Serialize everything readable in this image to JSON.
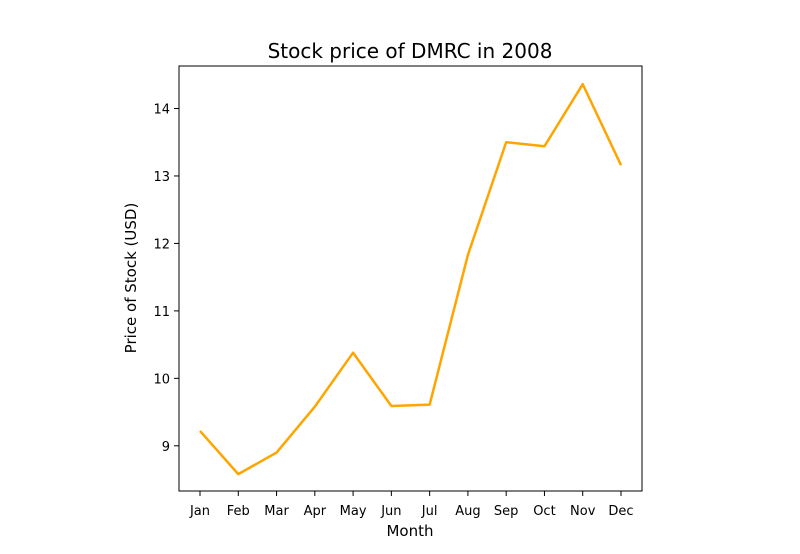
{
  "chart_data": {
    "type": "line",
    "title": "Stock price of DMRC in 2008",
    "xlabel": "Month",
    "ylabel": "Price of Stock (USD)",
    "categories": [
      "Jan",
      "Feb",
      "Mar",
      "Apr",
      "May",
      "Jun",
      "Jul",
      "Aug",
      "Sep",
      "Oct",
      "Nov",
      "Dec"
    ],
    "series": [
      {
        "values": [
          9.22,
          8.58,
          8.9,
          9.58,
          10.38,
          9.59,
          9.61,
          11.83,
          13.5,
          13.44,
          14.36,
          13.16
        ],
        "color": "#FFA500"
      }
    ],
    "yticks": [
      9,
      10,
      11,
      12,
      13,
      14
    ],
    "ylim": [
      8.33,
      14.63
    ],
    "grid": false,
    "legend": "none"
  }
}
